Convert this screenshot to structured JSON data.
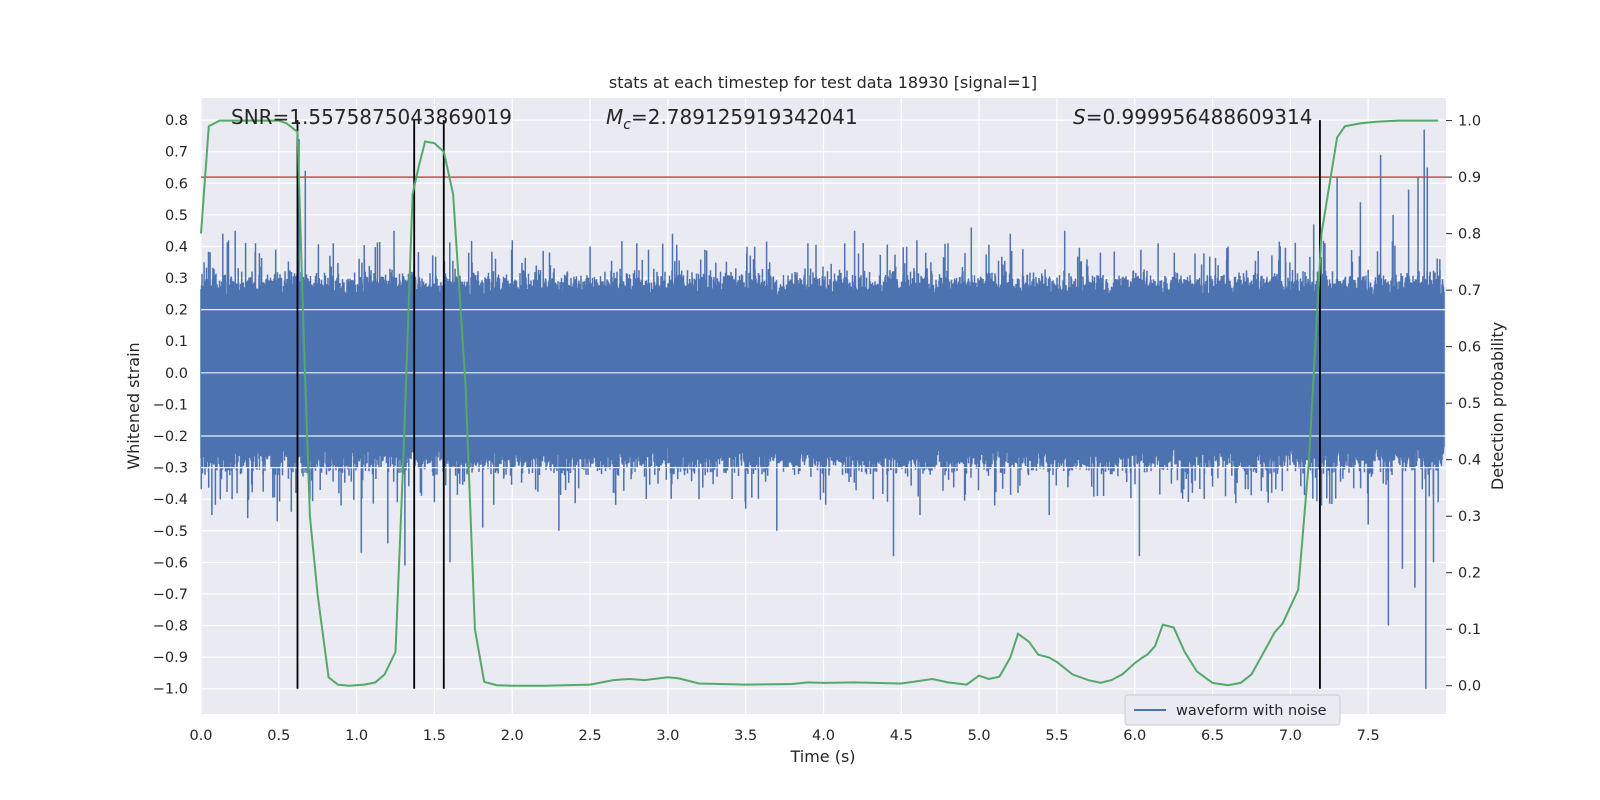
{
  "chart_data": {
    "type": "line",
    "title": "stats at each timestep for test data 18930 [signal=1]",
    "xlabel": "Time (s)",
    "ylabel": "Whitened strain",
    "ylabel_right": "Detection probability",
    "xlim": [
      0.0,
      8.0
    ],
    "ylim": [
      -1.08,
      0.87
    ],
    "ylim_right": [
      -0.05,
      1.04
    ],
    "x_ticks": [
      0.0,
      0.5,
      1.0,
      1.5,
      2.0,
      2.5,
      3.0,
      3.5,
      4.0,
      4.5,
      5.0,
      5.5,
      6.0,
      6.5,
      7.0,
      7.5
    ],
    "x_tick_labels": [
      "0.0",
      "0.5",
      "1.0",
      "1.5",
      "2.0",
      "2.5",
      "3.0",
      "3.5",
      "4.0",
      "4.5",
      "5.0",
      "5.5",
      "6.0",
      "6.5",
      "7.0",
      "7.5"
    ],
    "y_ticks": [
      0.8,
      0.7,
      0.6,
      0.5,
      0.4,
      0.3,
      0.2,
      0.1,
      0.0,
      -0.1,
      -0.2,
      -0.3,
      -0.4,
      -0.5,
      -0.6,
      -0.7,
      -0.8,
      -0.9,
      -1.0
    ],
    "y_tick_labels": [
      "0.8",
      "0.7",
      "0.6",
      "0.5",
      "0.4",
      "0.3",
      "0.2",
      "0.1",
      "0.0",
      "−0.1",
      "−0.2",
      "−0.3",
      "−0.4",
      "−0.5",
      "−0.6",
      "−0.7",
      "−0.8",
      "−0.9",
      "−1.0"
    ],
    "y_right_ticks": [
      1.0,
      0.9,
      0.8,
      0.7,
      0.6,
      0.5,
      0.4,
      0.3,
      0.2,
      0.1,
      0.0
    ],
    "y_right_tick_labels": [
      "1.0",
      "0.9",
      "0.8",
      "0.7",
      "0.6",
      "0.5",
      "0.4",
      "0.3",
      "0.2",
      "0.1",
      "0.0"
    ],
    "annotations": {
      "snr": "SNR=1.5575875043869019",
      "mc_symbol": "M",
      "mc_sub": "c",
      "mc_value": "=2.789125919342041",
      "s_symbol": "S",
      "s_value": "=0.999956488609314"
    },
    "threshold": {
      "value": 0.9,
      "axis": "right",
      "color": "#c44e52"
    },
    "vertical_lines": [
      0.62,
      1.37,
      1.56,
      7.19
    ],
    "vline_range": [
      -1.0,
      0.8
    ],
    "series": [
      {
        "name": "waveform with noise",
        "color": "#4c72b0",
        "axis": "left",
        "kind": "noise",
        "core_amplitude": 0.27,
        "core_floor": 0.22,
        "x_range": [
          0.0,
          7.99
        ],
        "spikes": [
          [
            0.02,
            0.35
          ],
          [
            0.07,
            -0.45
          ],
          [
            0.14,
            0.44
          ],
          [
            0.2,
            -0.4
          ],
          [
            0.22,
            0.45
          ],
          [
            0.3,
            -0.46
          ],
          [
            0.35,
            0.41
          ],
          [
            0.48,
            0.39
          ],
          [
            0.49,
            -0.47
          ],
          [
            0.58,
            -0.44
          ],
          [
            0.61,
            -0.38
          ],
          [
            0.62,
            0.36
          ],
          [
            0.63,
            0.74
          ],
          [
            0.67,
            0.64
          ],
          [
            0.7,
            -0.4
          ],
          [
            0.76,
            0.3
          ],
          [
            0.85,
            0.41
          ],
          [
            0.9,
            -0.42
          ],
          [
            1.03,
            -0.57
          ],
          [
            1.05,
            0.36
          ],
          [
            1.11,
            -0.3
          ],
          [
            1.2,
            -0.54
          ],
          [
            1.24,
            0.45
          ],
          [
            1.31,
            -0.61
          ],
          [
            1.35,
            0.32
          ],
          [
            1.37,
            0.65
          ],
          [
            1.41,
            -0.38
          ],
          [
            1.5,
            -0.41
          ],
          [
            1.6,
            -0.6
          ],
          [
            1.72,
            0.38
          ],
          [
            1.81,
            -0.49
          ],
          [
            2.0,
            0.42
          ],
          [
            2.15,
            -0.37
          ],
          [
            2.3,
            -0.5
          ],
          [
            2.5,
            0.4
          ],
          [
            2.65,
            -0.38
          ],
          [
            2.8,
            0.41
          ],
          [
            3.03,
            0.44
          ],
          [
            3.2,
            -0.4
          ],
          [
            3.5,
            -0.43
          ],
          [
            3.55,
            0.36
          ],
          [
            3.7,
            -0.5
          ],
          [
            3.9,
            0.41
          ],
          [
            4.0,
            -0.38
          ],
          [
            4.2,
            0.45
          ],
          [
            4.32,
            -0.4
          ],
          [
            4.45,
            -0.58
          ],
          [
            4.6,
            0.42
          ],
          [
            4.62,
            -0.45
          ],
          [
            4.8,
            0.41
          ],
          [
            4.95,
            0.46
          ],
          [
            5.1,
            -0.42
          ],
          [
            5.2,
            0.44
          ],
          [
            5.25,
            -0.38
          ],
          [
            5.45,
            -0.45
          ],
          [
            5.55,
            0.45
          ],
          [
            5.8,
            -0.39
          ],
          [
            6.03,
            -0.58
          ],
          [
            6.15,
            0.41
          ],
          [
            6.3,
            -0.38
          ],
          [
            6.5,
            -0.36
          ],
          [
            6.6,
            0.4
          ],
          [
            6.88,
            -0.38
          ],
          [
            6.97,
            0.35
          ],
          [
            7.15,
            0.47
          ],
          [
            7.2,
            -0.42
          ],
          [
            7.3,
            0.62
          ],
          [
            7.45,
            0.54
          ],
          [
            7.5,
            -0.48
          ],
          [
            7.58,
            0.69
          ],
          [
            7.63,
            -0.8
          ],
          [
            7.66,
            0.5
          ],
          [
            7.72,
            -0.62
          ],
          [
            7.76,
            0.58
          ],
          [
            7.8,
            -0.68
          ],
          [
            7.82,
            0.62
          ],
          [
            7.86,
            0.77
          ],
          [
            7.87,
            -1.0
          ],
          [
            7.88,
            0.65
          ],
          [
            7.92,
            -0.6
          ],
          [
            7.96,
            0.36
          ]
        ]
      },
      {
        "name": "detection probability",
        "color": "#55a868",
        "axis": "right",
        "kind": "line",
        "x": [
          0.0,
          0.05,
          0.12,
          0.2,
          0.3,
          0.4,
          0.5,
          0.55,
          0.62,
          0.66,
          0.7,
          0.75,
          0.82,
          0.88,
          0.95,
          1.05,
          1.12,
          1.18,
          1.25,
          1.3,
          1.36,
          1.4,
          1.44,
          1.5,
          1.56,
          1.62,
          1.7,
          1.76,
          1.82,
          1.9,
          2.0,
          2.2,
          2.5,
          2.65,
          2.75,
          2.85,
          3.0,
          3.07,
          3.2,
          3.5,
          3.8,
          3.9,
          4.0,
          4.2,
          4.5,
          4.7,
          4.8,
          4.92,
          5.0,
          5.06,
          5.13,
          5.2,
          5.25,
          5.32,
          5.38,
          5.45,
          5.5,
          5.6,
          5.7,
          5.78,
          5.85,
          5.92,
          6.0,
          6.05,
          6.08,
          6.13,
          6.18,
          6.25,
          6.32,
          6.4,
          6.5,
          6.6,
          6.68,
          6.75,
          6.82,
          6.9,
          6.95,
          7.05,
          7.12,
          7.2,
          7.3,
          7.35,
          7.45,
          7.55,
          7.7,
          7.85,
          7.95
        ],
        "y": [
          0.8,
          0.99,
          1.0,
          1.0,
          1.0,
          1.0,
          1.0,
          0.995,
          0.98,
          0.62,
          0.3,
          0.16,
          0.015,
          0.002,
          0.0,
          0.002,
          0.006,
          0.02,
          0.06,
          0.4,
          0.87,
          0.92,
          0.963,
          0.96,
          0.945,
          0.87,
          0.53,
          0.1,
          0.007,
          0.001,
          0.0,
          0.0,
          0.002,
          0.01,
          0.012,
          0.01,
          0.015,
          0.013,
          0.004,
          0.002,
          0.003,
          0.006,
          0.005,
          0.006,
          0.004,
          0.012,
          0.006,
          0.002,
          0.018,
          0.012,
          0.016,
          0.05,
          0.092,
          0.078,
          0.055,
          0.05,
          0.042,
          0.02,
          0.01,
          0.005,
          0.01,
          0.02,
          0.04,
          0.05,
          0.055,
          0.07,
          0.108,
          0.103,
          0.06,
          0.025,
          0.005,
          0.001,
          0.005,
          0.02,
          0.055,
          0.095,
          0.11,
          0.17,
          0.4,
          0.8,
          0.97,
          0.99,
          0.995,
          0.998,
          1.0,
          1.0,
          1.0
        ]
      }
    ],
    "legend": {
      "label": "waveform with noise",
      "position": "lower-right"
    }
  }
}
